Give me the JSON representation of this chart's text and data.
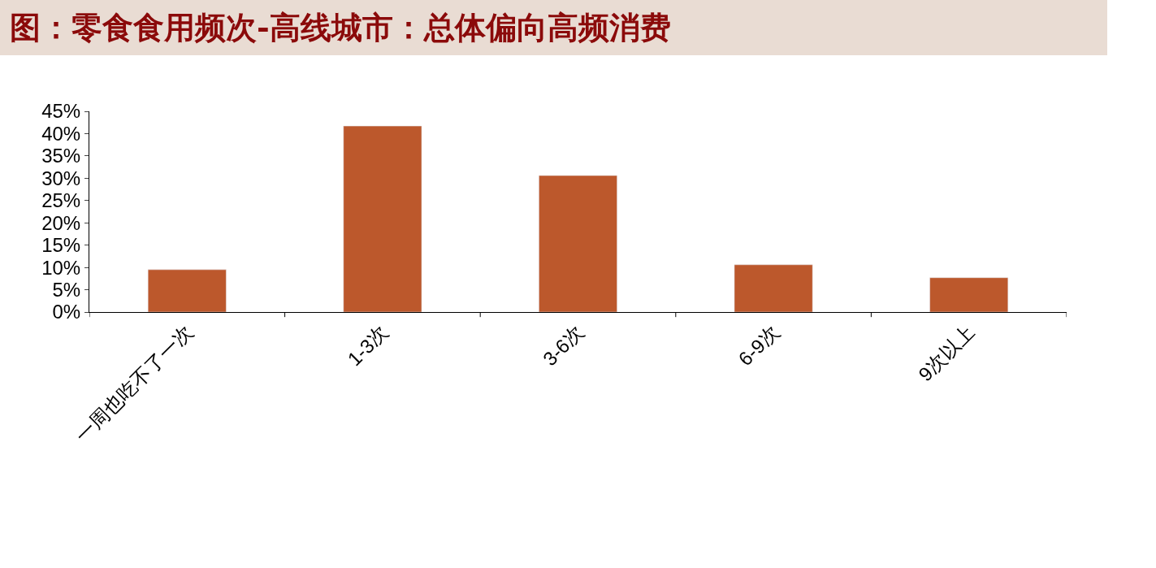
{
  "chart_data": {
    "type": "bar",
    "title": "图：零食食用频次-高线城市：总体偏向高频消费",
    "categories": [
      "一周也吃不了一次",
      "1-3次",
      "3-6次",
      "6-9次",
      "9次以上"
    ],
    "values": [
      9.5,
      41.7,
      30.6,
      10.6,
      7.7
    ],
    "color": "#bc582c",
    "ylim": [
      0,
      45
    ],
    "yticks": [
      {
        "value": 0,
        "label": "0%"
      },
      {
        "value": 5,
        "label": "5%"
      },
      {
        "value": 10,
        "label": "10%"
      },
      {
        "value": 15,
        "label": "15%"
      },
      {
        "value": 20,
        "label": "20%"
      },
      {
        "value": 25,
        "label": "25%"
      },
      {
        "value": 30,
        "label": "30%"
      },
      {
        "value": 35,
        "label": "35%"
      },
      {
        "value": 40,
        "label": "40%"
      },
      {
        "value": 45,
        "label": "45%"
      }
    ],
    "orientation": "vertical"
  }
}
